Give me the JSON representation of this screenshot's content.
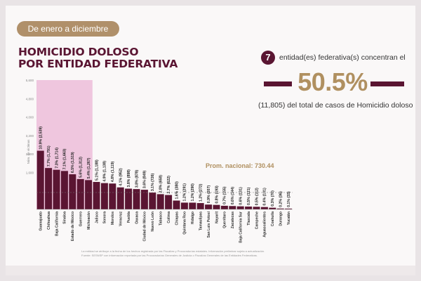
{
  "header": {
    "badge": "De enero a diciembre",
    "title_line1": "HOMICIDIO DOLOSO",
    "title_line2": "POR ENTIDAD FEDERATIVA"
  },
  "summary": {
    "count": "7",
    "count_text": "entidad(es) federativa(s) concentran el",
    "percent": "50.5%",
    "detail": "(11,805) del total de casos de Homicidio doloso"
  },
  "colors": {
    "primary": "#5a1532",
    "highlight": "#efc6de",
    "gold": "#b09060",
    "badge": "#b0906a"
  },
  "chart_data": {
    "type": "bar",
    "ylabel": "Núm. de víctimas",
    "ylim": [
      0,
      5600
    ],
    "yticks": [
      1600,
      2400,
      3200,
      4000,
      4800,
      5600
    ],
    "ytick_labels": [
      "1,600",
      "2,400",
      "3,200",
      "4,000",
      "4,800",
      "5,600"
    ],
    "average_label": "Prom. nacional: 730.44",
    "average_value": 730.44,
    "highlight_count": 7,
    "categories": [
      "Guanajuato",
      "Chihuahua",
      "Baja California",
      "Sinaloa",
      "Estado de México",
      "Guerrero",
      "Michoacán",
      "Jalisco",
      "Sonora",
      "Morelos",
      "Veracruz",
      "Puebla",
      "Oaxaca",
      "Ciudad de México",
      "Nuevo León",
      "Tabasco",
      "Colima",
      "Chiapas",
      "Quintana Roo",
      "Hidalgo",
      "Tamaulipas",
      "San Luis Potosí",
      "Nayarit",
      "Querétaro",
      "Zacatecas",
      "Baja California Sur",
      "Tlaxcala",
      "Campeche",
      "Aguascalientes",
      "Coahuila",
      "Durango",
      "Yucatán"
    ],
    "values": [
      2539,
      1791,
      1714,
      1663,
      1519,
      1312,
      1267,
      1188,
      1138,
      1119,
      952,
      898,
      878,
      849,
      726,
      658,
      622,
      380,
      291,
      290,
      272,
      207,
      193,
      155,
      144,
      131,
      121,
      112,
      101,
      70,
      36,
      33
    ],
    "value_labels": [
      "10.9% (2,539)",
      "7.7% (1,791)",
      "7.3% (1,714)",
      "7.1% (1,663)",
      "6.5% (1,519)",
      "5.6% (1,312)",
      "5.4% (1,267)",
      "5.1% (1,188)",
      "4.9% (1,138)",
      "4.8% (1,119)",
      "4.1% (952)",
      "3.8% (898)",
      "3.8% (878)",
      "3.6% (849)",
      "3.1% (726)",
      "2.8% (658)",
      "2.7% (622)",
      "1.6% (380)",
      "1.2% (291)",
      "1.2% (290)",
      "1.2% (272)",
      "0.9% (207)",
      "0.8% (193)",
      "0.7% (155)",
      "0.6% (144)",
      "0.6% (131)",
      "0.5% (121)",
      "0.5% (112)",
      "0.4% (101)",
      "0.3% (70)",
      "0.2% (36)",
      "0.1% (33)"
    ]
  },
  "footnotes": {
    "line1": "La entidad se atribuye a la fecha de los hechos registrada por las Fiscalías y Procuradurías estatales. Información preliminar sujeta a actualización.",
    "line2": "Fuente: SESNSP con información reportada por las Procuradurías Generales de Justicia o Fiscalías Generales de las Entidades Federativas."
  }
}
